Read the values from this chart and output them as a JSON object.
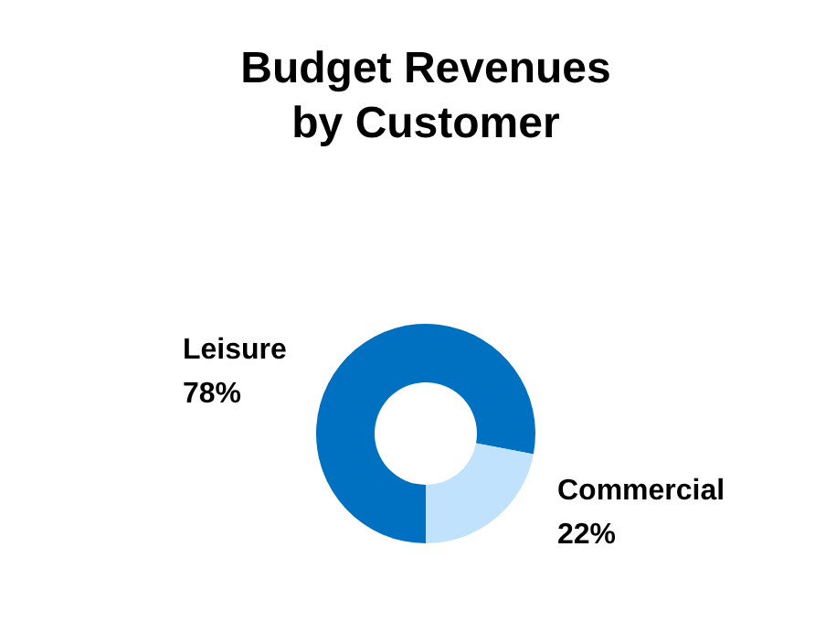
{
  "chart_data": {
    "type": "donut",
    "title": "Budget Revenues\nby Customer",
    "categories": [
      "Leisure",
      "Commercial"
    ],
    "values": [
      78,
      22
    ],
    "colors": [
      "#0070c0",
      "#c0e2fc"
    ],
    "value_labels": [
      "78%",
      "22%"
    ]
  }
}
